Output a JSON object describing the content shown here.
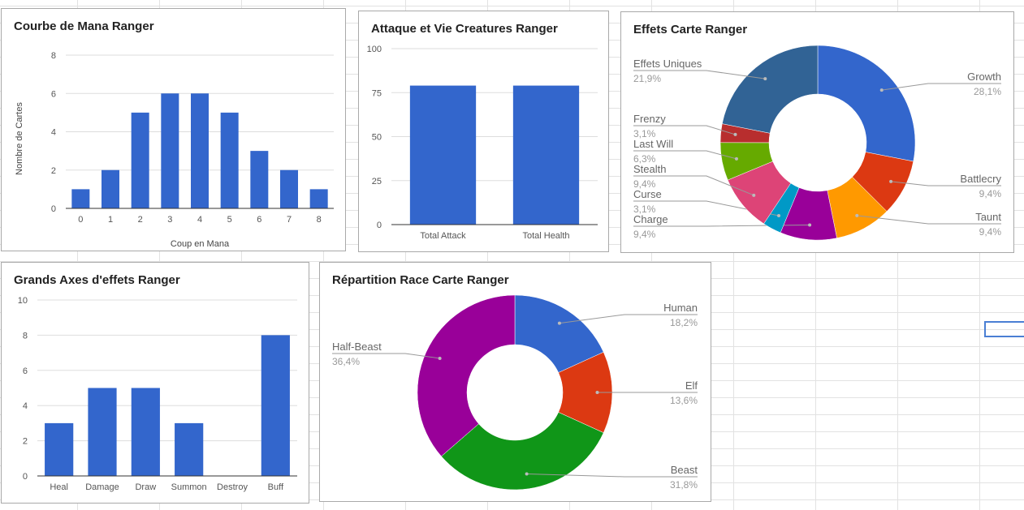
{
  "colors": {
    "bar": "#3366cc",
    "grid": "#dddddd",
    "axis": "#333333",
    "tick": "#555555",
    "leader": "#999999"
  },
  "chart_data": [
    {
      "type": "bar",
      "title": "Courbe de Mana Ranger",
      "xlabel": "Coup en Mana",
      "ylabel": "Nombre de Cartes",
      "categories": [
        "0",
        "1",
        "2",
        "3",
        "4",
        "5",
        "6",
        "7",
        "8"
      ],
      "values": [
        1,
        2,
        5,
        6,
        6,
        5,
        3,
        2,
        1
      ],
      "ylim": [
        0,
        8
      ],
      "yticks": [
        "0",
        "2",
        "4",
        "6",
        "8"
      ],
      "grid": true
    },
    {
      "type": "bar",
      "title": "Attaque et Vie Creatures Ranger",
      "xlabel": "",
      "ylabel": "",
      "categories": [
        "Total Attack",
        "Total Health"
      ],
      "values": [
        79,
        79
      ],
      "ylim": [
        0,
        100
      ],
      "yticks": [
        "0",
        "25",
        "50",
        "75",
        "100"
      ],
      "grid": true
    },
    {
      "type": "pie",
      "title": "Effets Carte Ranger",
      "donut": true,
      "slices": [
        {
          "label": "Growth",
          "value": 28.1,
          "pct": "28,1%",
          "color": "#3366cc"
        },
        {
          "label": "Battlecry",
          "value": 9.4,
          "pct": "9,4%",
          "color": "#dc3912"
        },
        {
          "label": "Taunt",
          "value": 9.4,
          "pct": "9,4%",
          "color": "#ff9900"
        },
        {
          "label": "Charge",
          "value": 9.4,
          "pct": "9,4%",
          "color": "#990099"
        },
        {
          "label": "Curse",
          "value": 3.1,
          "pct": "3,1%",
          "color": "#0099c6"
        },
        {
          "label": "Stealth",
          "value": 9.4,
          "pct": "9,4%",
          "color": "#dd4477"
        },
        {
          "label": "Last Will",
          "value": 6.3,
          "pct": "6,3%",
          "color": "#66aa00"
        },
        {
          "label": "Frenzy",
          "value": 3.1,
          "pct": "3,1%",
          "color": "#b82e2e"
        },
        {
          "label": "Effets Uniques",
          "value": 21.9,
          "pct": "21,9%",
          "color": "#316395"
        }
      ]
    },
    {
      "type": "bar",
      "title": "Grands Axes d'effets Ranger",
      "xlabel": "",
      "ylabel": "",
      "categories": [
        "Heal",
        "Damage",
        "Draw",
        "Summon",
        "Destroy",
        "Buff"
      ],
      "values": [
        3,
        5,
        5,
        3,
        0,
        8
      ],
      "ylim": [
        0,
        10
      ],
      "yticks": [
        "0",
        "2",
        "4",
        "6",
        "8",
        "10"
      ],
      "grid": true
    },
    {
      "type": "pie",
      "title": "Répartition Race Carte Ranger",
      "donut": true,
      "slices": [
        {
          "label": "Human",
          "value": 18.2,
          "pct": "18,2%",
          "color": "#3366cc"
        },
        {
          "label": "Elf",
          "value": 13.6,
          "pct": "13,6%",
          "color": "#dc3912"
        },
        {
          "label": "Beast",
          "value": 31.8,
          "pct": "31,8%",
          "color": "#109618"
        },
        {
          "label": "Half-Beast",
          "value": 36.4,
          "pct": "36,4%",
          "color": "#990099"
        }
      ]
    }
  ]
}
